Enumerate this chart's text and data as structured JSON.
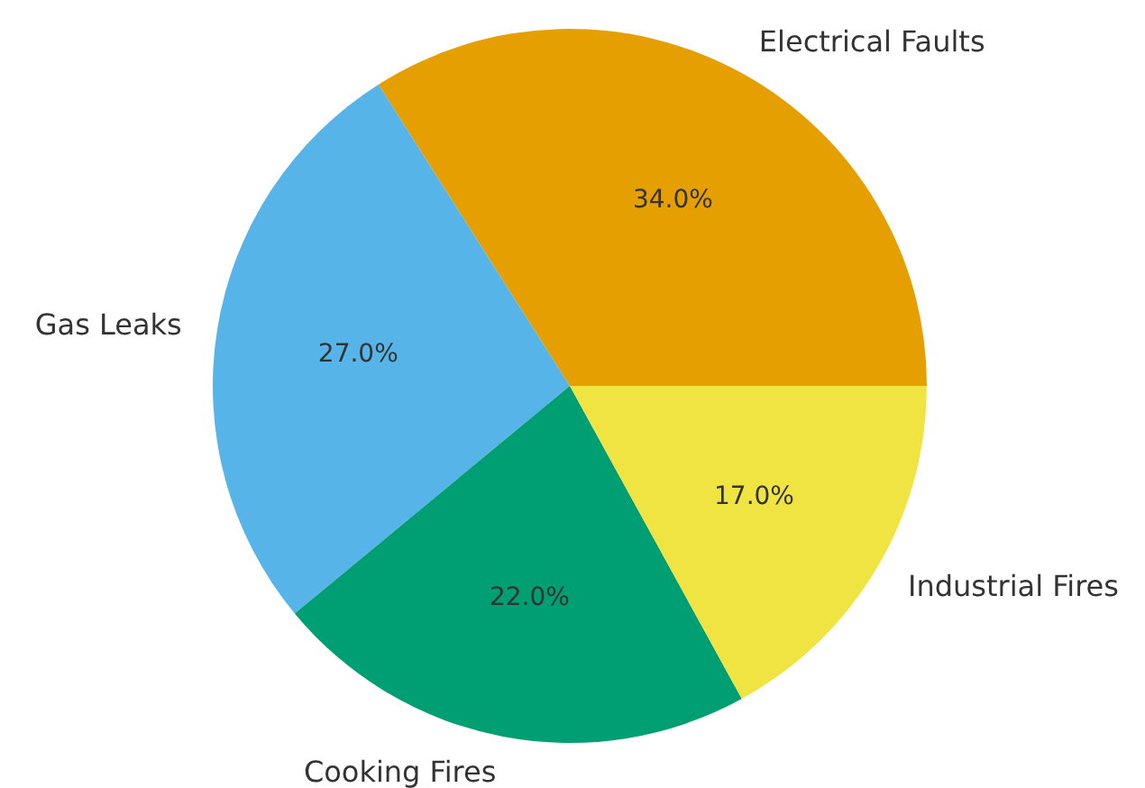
{
  "chart_data": {
    "type": "pie",
    "categories": [
      "Electrical Faults",
      "Gas Leaks",
      "Cooking Fires",
      "Industrial Fires"
    ],
    "values": [
      34,
      27,
      22,
      17
    ],
    "colors": [
      "#e69f00",
      "#56b4e9",
      "#009e73",
      "#f0e442"
    ],
    "value_labels": [
      "34.0%",
      "27.0%",
      "22.0%",
      "17.0%"
    ]
  }
}
